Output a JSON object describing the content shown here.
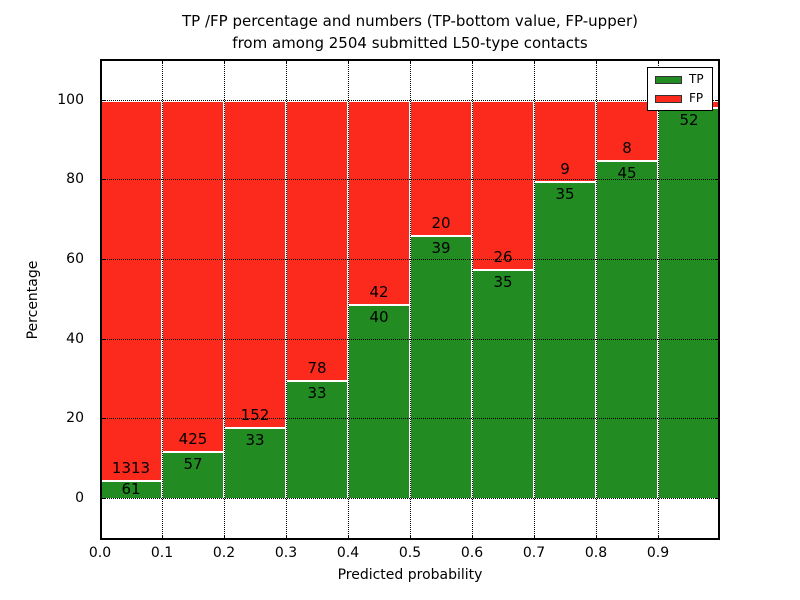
{
  "title": {
    "line1": "TP /FP percentage and numbers (TP-bottom value, FP-upper)",
    "line2": "from among 2504 submitted L50-type contacts"
  },
  "axes": {
    "xlabel": "Predicted probability",
    "ylabel": "Percentage",
    "xtick_labels": [
      "0.0",
      "0.1",
      "0.2",
      "0.3",
      "0.4",
      "0.5",
      "0.6",
      "0.7",
      "0.8",
      "0.9"
    ],
    "ytick_values": [
      0,
      20,
      40,
      60,
      80,
      100
    ],
    "xlim": [
      0.0,
      1.0
    ],
    "ylim": [
      -10.3,
      110.5
    ],
    "grid": "dotted, drawn over bars"
  },
  "legend": {
    "position": "upper right",
    "items": [
      {
        "label": "TP",
        "color": "#228b22"
      },
      {
        "label": "FP",
        "color": "#fb2a1d"
      }
    ]
  },
  "chart_data": {
    "type": "bar",
    "stacked": true,
    "orientation": "vertical",
    "total_contacts": 2504,
    "bin_width": 0.1,
    "categories": [
      "0.0-0.1",
      "0.1-0.2",
      "0.2-0.3",
      "0.3-0.4",
      "0.4-0.5",
      "0.5-0.6",
      "0.6-0.7",
      "0.7-0.8",
      "0.8-0.9",
      "0.9-1.0"
    ],
    "series": [
      {
        "name": "TP",
        "color": "#228b22",
        "counts": [
          61,
          57,
          33,
          33,
          40,
          39,
          35,
          35,
          45,
          52
        ],
        "count_labels": [
          "61",
          "57",
          "33",
          "33",
          "40",
          "39",
          "35",
          "35",
          "45",
          "52"
        ],
        "pct": [
          4.44,
          11.83,
          17.84,
          29.73,
          48.78,
          66.1,
          57.38,
          79.55,
          84.91,
          98.11
        ]
      },
      {
        "name": "FP",
        "color": "#fb2a1d",
        "counts": [
          1313,
          425,
          152,
          78,
          42,
          20,
          26,
          9,
          8,
          null
        ],
        "count_labels": [
          "1313",
          "425",
          "152",
          "78",
          "42",
          "20",
          "26",
          "9",
          "8",
          ""
        ],
        "pct": [
          95.56,
          88.17,
          82.16,
          70.27,
          51.22,
          33.9,
          42.62,
          20.45,
          15.09,
          1.89
        ]
      }
    ],
    "ylabel": "Percentage",
    "xlabel": "Predicted probability",
    "note_fp_last_bin_label_hidden_by_legend": true
  }
}
